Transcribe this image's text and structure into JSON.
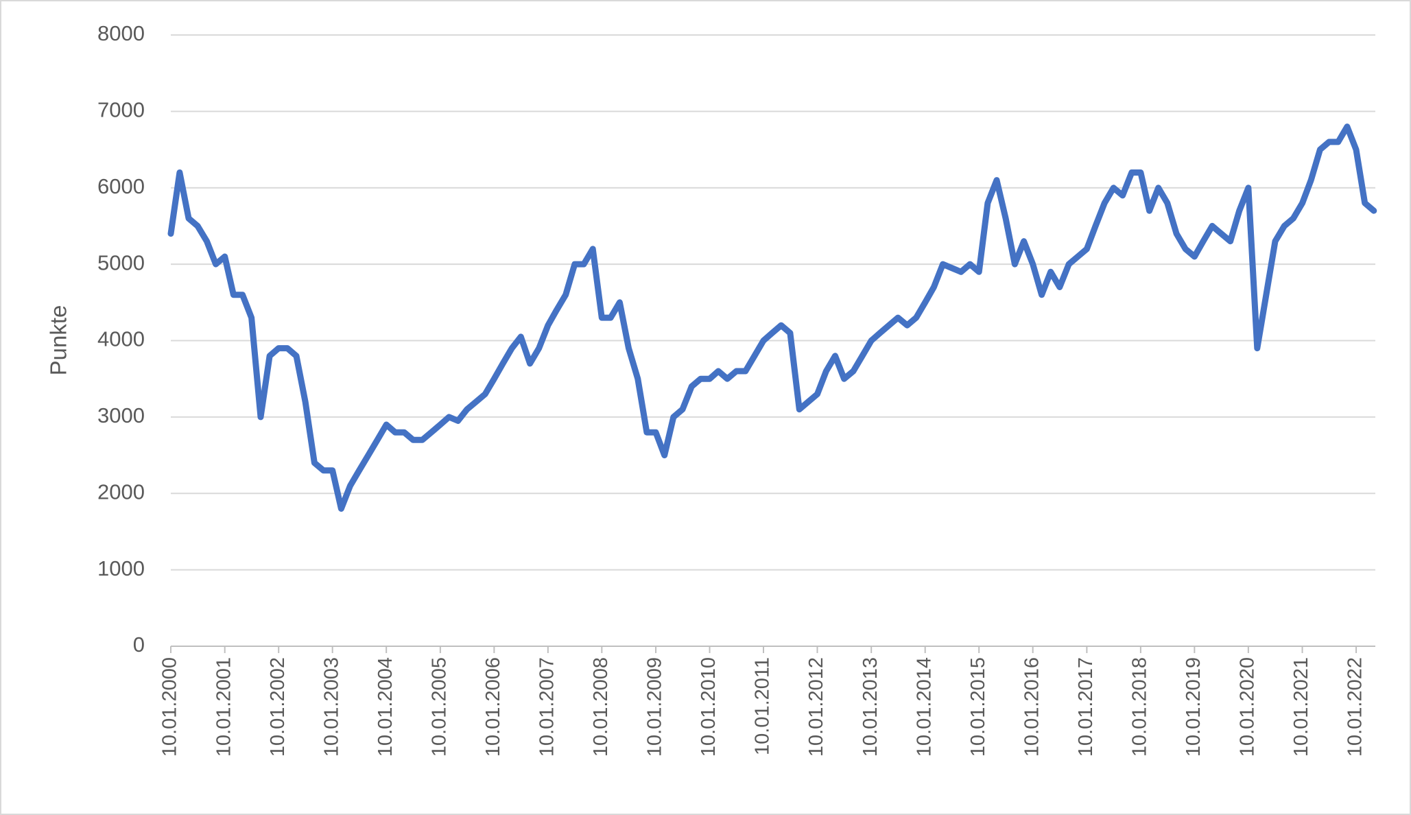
{
  "chart_data": {
    "type": "line",
    "y_axis_label": "Punkte",
    "x": [
      "2000-01-10",
      "2000-03-10",
      "2000-05-10",
      "2000-07-10",
      "2000-09-10",
      "2000-11-10",
      "2001-01-10",
      "2001-03-10",
      "2001-05-10",
      "2001-07-10",
      "2001-09-10",
      "2001-11-10",
      "2002-01-10",
      "2002-03-10",
      "2002-05-10",
      "2002-07-10",
      "2002-09-10",
      "2002-11-10",
      "2003-01-10",
      "2003-03-10",
      "2003-05-10",
      "2003-07-10",
      "2003-09-10",
      "2003-11-10",
      "2004-01-10",
      "2004-03-10",
      "2004-05-10",
      "2004-07-10",
      "2004-09-10",
      "2004-11-10",
      "2005-01-10",
      "2005-03-10",
      "2005-05-10",
      "2005-07-10",
      "2005-09-10",
      "2005-11-10",
      "2006-01-10",
      "2006-03-10",
      "2006-05-10",
      "2006-07-10",
      "2006-09-10",
      "2006-11-10",
      "2007-01-10",
      "2007-03-10",
      "2007-05-10",
      "2007-07-10",
      "2007-09-10",
      "2007-11-10",
      "2008-01-10",
      "2008-03-10",
      "2008-05-10",
      "2008-07-10",
      "2008-09-10",
      "2008-11-10",
      "2009-01-10",
      "2009-03-10",
      "2009-05-10",
      "2009-07-10",
      "2009-09-10",
      "2009-11-10",
      "2010-01-10",
      "2010-03-10",
      "2010-05-10",
      "2010-07-10",
      "2010-09-10",
      "2010-11-10",
      "2011-01-10",
      "2011-03-10",
      "2011-05-10",
      "2011-07-10",
      "2011-09-10",
      "2011-11-10",
      "2012-01-10",
      "2012-03-10",
      "2012-05-10",
      "2012-07-10",
      "2012-09-10",
      "2012-11-10",
      "2013-01-10",
      "2013-03-10",
      "2013-05-10",
      "2013-07-10",
      "2013-09-10",
      "2013-11-10",
      "2014-01-10",
      "2014-03-10",
      "2014-05-10",
      "2014-07-10",
      "2014-09-10",
      "2014-11-10",
      "2015-01-10",
      "2015-03-10",
      "2015-05-10",
      "2015-07-10",
      "2015-09-10",
      "2015-11-10",
      "2016-01-10",
      "2016-03-10",
      "2016-05-10",
      "2016-07-10",
      "2016-09-10",
      "2016-11-10",
      "2017-01-10",
      "2017-03-10",
      "2017-05-10",
      "2017-07-10",
      "2017-09-10",
      "2017-11-10",
      "2018-01-10",
      "2018-03-10",
      "2018-05-10",
      "2018-07-10",
      "2018-09-10",
      "2018-11-10",
      "2019-01-10",
      "2019-03-10",
      "2019-05-10",
      "2019-07-10",
      "2019-09-10",
      "2019-11-10",
      "2020-01-10",
      "2020-03-10",
      "2020-05-10",
      "2020-07-10",
      "2020-09-10",
      "2020-11-10",
      "2021-01-10",
      "2021-03-10",
      "2021-05-10",
      "2021-07-10",
      "2021-09-10",
      "2021-11-10",
      "2022-01-10",
      "2022-03-10",
      "2022-05-10"
    ],
    "series": [
      {
        "color": "#4472c4",
        "values": [
          5400,
          6200,
          5600,
          5500,
          5300,
          5000,
          5100,
          4600,
          4600,
          4300,
          3000,
          3800,
          3900,
          3900,
          3800,
          3200,
          2400,
          2300,
          2300,
          1800,
          2100,
          2300,
          2500,
          2700,
          2900,
          2800,
          2800,
          2700,
          2700,
          2800,
          2900,
          3000,
          2950,
          3100,
          3200,
          3300,
          3500,
          3700,
          3900,
          4050,
          3700,
          3900,
          4200,
          4400,
          4600,
          5000,
          5000,
          5200,
          4300,
          4300,
          4500,
          3900,
          3500,
          2800,
          2800,
          2500,
          3000,
          3100,
          3400,
          3500,
          3500,
          3600,
          3500,
          3600,
          3600,
          3800,
          4000,
          4100,
          4200,
          4100,
          3100,
          3200,
          3300,
          3600,
          3800,
          3500,
          3600,
          3800,
          4000,
          4100,
          4200,
          4300,
          4200,
          4300,
          4500,
          4700,
          5000,
          4950,
          4900,
          5000,
          4900,
          5800,
          6100,
          5600,
          5000,
          5300,
          5000,
          4600,
          4900,
          4700,
          5000,
          5100,
          5200,
          5500,
          5800,
          6000,
          5900,
          6200,
          6200,
          5700,
          6000,
          5800,
          5400,
          5200,
          5100,
          5300,
          5500,
          5400,
          5300,
          5700,
          6000,
          3900,
          4600,
          5300,
          5500,
          5600,
          5800,
          6100,
          6500,
          6600,
          6600,
          6800,
          6500,
          5800,
          5700
        ]
      }
    ],
    "xlim": [
      "2000-01-10",
      "2022-05-20"
    ],
    "xticks": [
      {
        "value": "2000-01-10",
        "label": "10.01.2000"
      },
      {
        "value": "2001-01-10",
        "label": "10.01.2001"
      },
      {
        "value": "2002-01-10",
        "label": "10.01.2002"
      },
      {
        "value": "2003-01-10",
        "label": "10.01.2003"
      },
      {
        "value": "2004-01-10",
        "label": "10.01.2004"
      },
      {
        "value": "2005-01-10",
        "label": "10.01.2005"
      },
      {
        "value": "2006-01-10",
        "label": "10.01.2006"
      },
      {
        "value": "2007-01-10",
        "label": "10.01.2007"
      },
      {
        "value": "2008-01-10",
        "label": "10.01.2008"
      },
      {
        "value": "2009-01-10",
        "label": "10.01.2009"
      },
      {
        "value": "2010-01-10",
        "label": "10.01.2010"
      },
      {
        "value": "2011-01-10",
        "label": "10.01.2011"
      },
      {
        "value": "2012-01-10",
        "label": "10.01.2012"
      },
      {
        "value": "2013-01-10",
        "label": "10.01.2013"
      },
      {
        "value": "2014-01-10",
        "label": "10.01.2014"
      },
      {
        "value": "2015-01-10",
        "label": "10.01.2015"
      },
      {
        "value": "2016-01-10",
        "label": "10.01.2016"
      },
      {
        "value": "2017-01-10",
        "label": "10.01.2017"
      },
      {
        "value": "2018-01-10",
        "label": "10.01.2018"
      },
      {
        "value": "2019-01-10",
        "label": "10.01.2019"
      },
      {
        "value": "2020-01-10",
        "label": "10.01.2020"
      },
      {
        "value": "2021-01-10",
        "label": "10.01.2021"
      },
      {
        "value": "2022-01-10",
        "label": "10.01.2022"
      }
    ],
    "ylim": [
      0,
      8000
    ],
    "yticks": [
      0,
      1000,
      2000,
      3000,
      4000,
      5000,
      6000,
      7000,
      8000
    ],
    "grid": true
  }
}
